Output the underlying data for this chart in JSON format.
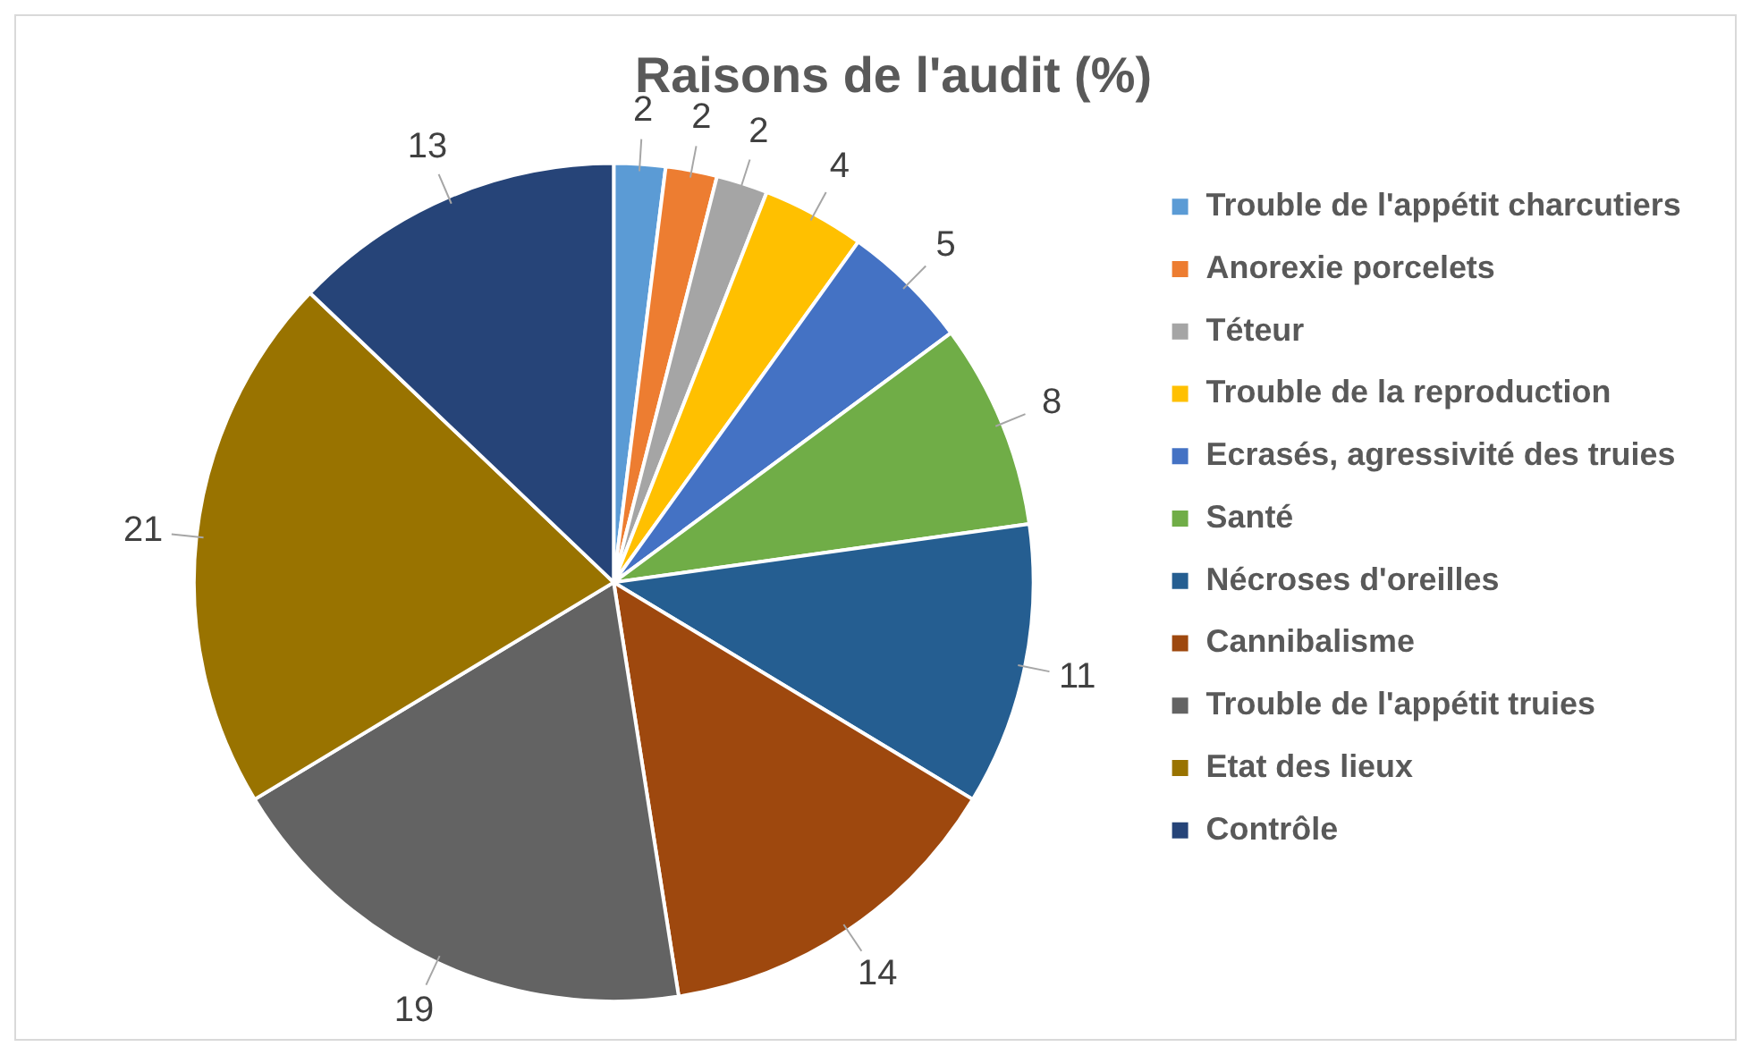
{
  "chart_data": {
    "type": "pie",
    "title": "Raisons de l'audit (%)",
    "categories": [
      "Trouble de l'appétit charcutiers",
      "Anorexie porcelets",
      "Téteur",
      "Trouble de la reproduction",
      "Ecrasés, agressivité des truies",
      "Santé",
      "Nécroses d'oreilles",
      "Cannibalisme",
      "Trouble de l'appétit truies",
      "Etat des lieux",
      "Contrôle"
    ],
    "values": [
      2,
      2,
      2,
      4,
      5,
      8,
      11,
      14,
      19,
      21,
      13
    ],
    "colors": [
      "#5b9bd5",
      "#ed7d31",
      "#a5a5a5",
      "#ffc000",
      "#4472c4",
      "#70ad47",
      "#255e91",
      "#9e480e",
      "#636363",
      "#997300",
      "#264478"
    ],
    "data_labels": true,
    "legend": "right"
  }
}
